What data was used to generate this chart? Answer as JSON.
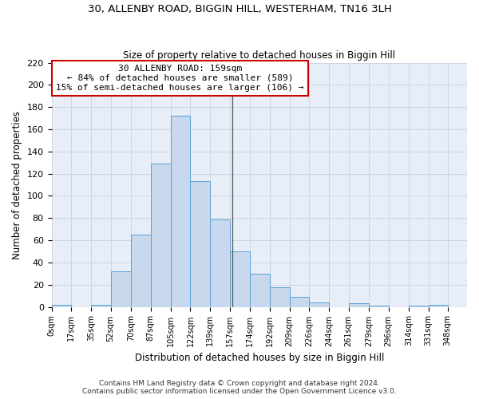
{
  "title": "30, ALLENBY ROAD, BIGGIN HILL, WESTERHAM, TN16 3LH",
  "subtitle": "Size of property relative to detached houses in Biggin Hill",
  "xlabel": "Distribution of detached houses by size in Biggin Hill",
  "ylabel": "Number of detached properties",
  "bin_edges": [
    0,
    17,
    35,
    52,
    70,
    87,
    105,
    122,
    139,
    157,
    174,
    192,
    209,
    226,
    244,
    261,
    279,
    296,
    314,
    331,
    348
  ],
  "bar_heights": [
    2,
    0,
    2,
    32,
    65,
    129,
    172,
    113,
    79,
    50,
    30,
    18,
    9,
    4,
    0,
    3,
    1,
    0,
    1,
    2
  ],
  "bar_color": "#c8d9ed",
  "bar_edge_color": "#5a9fd4",
  "property_line_x": 159,
  "annotation_title": "30 ALLENBY ROAD: 159sqm",
  "annotation_line1": "← 84% of detached houses are smaller (589)",
  "annotation_line2": "15% of semi-detached houses are larger (106) →",
  "vline_color": "#555555",
  "annotation_box_color": "#ffffff",
  "annotation_box_edge": "#cc0000",
  "ylim": [
    0,
    220
  ],
  "yticks": [
    0,
    20,
    40,
    60,
    80,
    100,
    120,
    140,
    160,
    180,
    200,
    220
  ],
  "xlim_max": 365,
  "background_color": "#ffffff",
  "axes_bg_color": "#e8eef8",
  "grid_color": "#c8d0e0",
  "footer_line1": "Contains HM Land Registry data © Crown copyright and database right 2024.",
  "footer_line2": "Contains public sector information licensed under the Open Government Licence v3.0."
}
